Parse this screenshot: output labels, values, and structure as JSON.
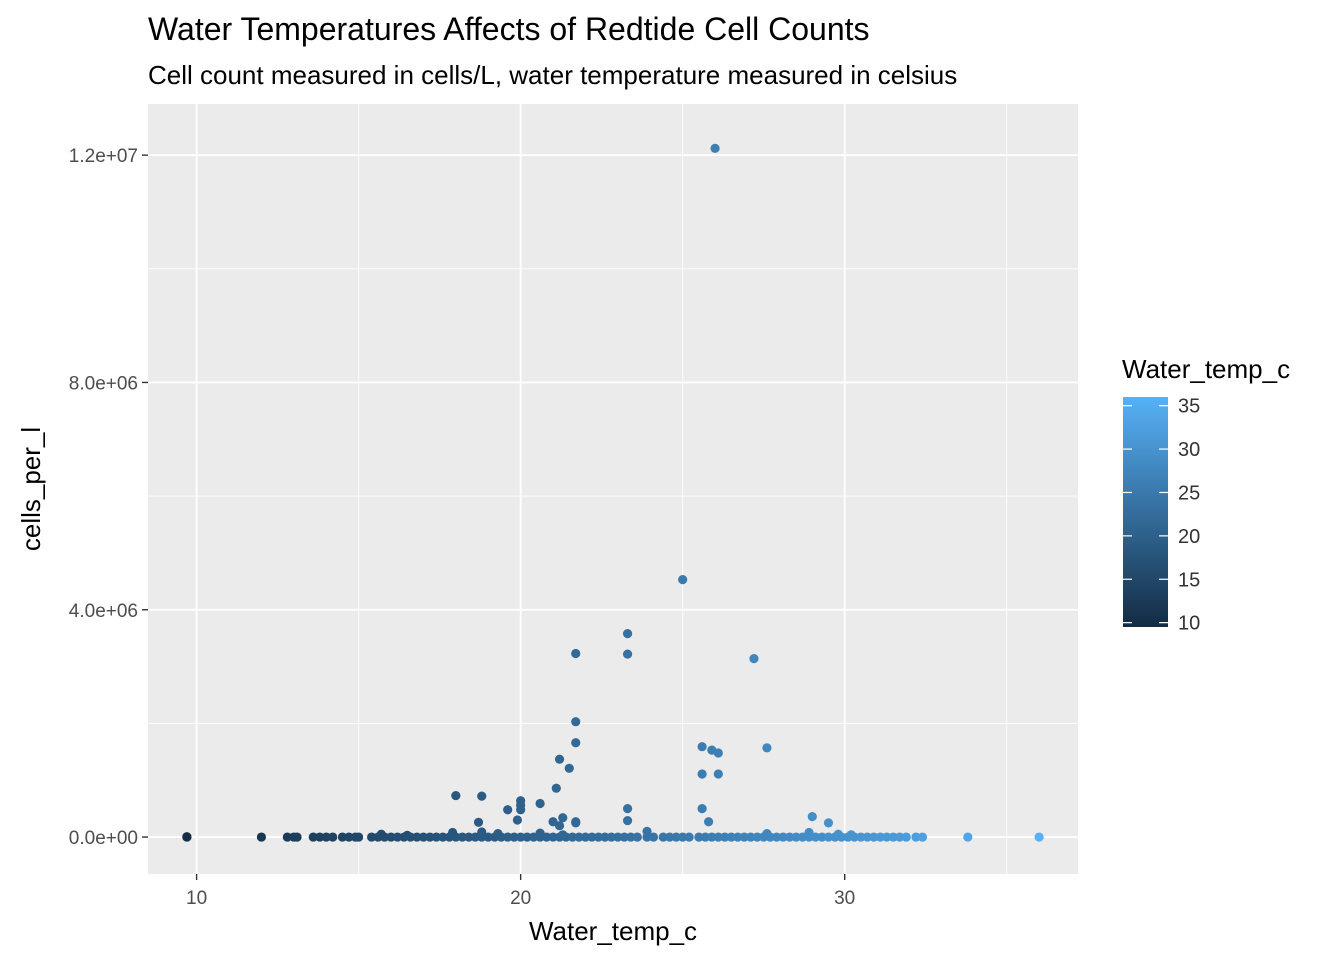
{
  "chart_data": {
    "type": "scatter",
    "title": "Water Temperatures Affects of Redtide Cell Counts",
    "subtitle": "Cell count measured in cells/L, water temperature measured in celsius",
    "xlabel": "Water_temp_c",
    "ylabel": "cells_per_l",
    "xlim": [
      8.5,
      37.2
    ],
    "ylim": [
      -650000,
      12900000
    ],
    "x_ticks": [
      10,
      20,
      30
    ],
    "x_tick_labels": [
      "10",
      "20",
      "30"
    ],
    "y_ticks": [
      0,
      4000000,
      8000000,
      12000000
    ],
    "y_tick_labels": [
      "0.0e+00",
      "4.0e+06",
      "8.0e+06",
      "1.2e+07"
    ],
    "grid": true,
    "legend": {
      "title": "Water_temp_c",
      "position": "right",
      "type": "colorbar",
      "min": 9.5,
      "max": 36,
      "ticks": [
        10,
        15,
        20,
        25,
        30,
        35
      ],
      "tick_labels": [
        "10",
        "15",
        "20",
        "25",
        "30",
        "35"
      ],
      "color_low": "#132B43",
      "color_high": "#56B1F7"
    },
    "colors": {
      "panel": "#EBEBEB",
      "grid": "#FFFFFF",
      "low": "#132B43",
      "high": "#56B1F7"
    },
    "points": [
      {
        "x": 9.7,
        "y": 0
      },
      {
        "x": 9.7,
        "y": 5000
      },
      {
        "x": 12.0,
        "y": 0
      },
      {
        "x": 12.8,
        "y": 0
      },
      {
        "x": 13.0,
        "y": 0
      },
      {
        "x": 13.1,
        "y": 0
      },
      {
        "x": 13.6,
        "y": 0
      },
      {
        "x": 13.8,
        "y": 0
      },
      {
        "x": 14.0,
        "y": 0
      },
      {
        "x": 14.2,
        "y": 0
      },
      {
        "x": 14.5,
        "y": 0
      },
      {
        "x": 14.7,
        "y": 0
      },
      {
        "x": 14.9,
        "y": 0
      },
      {
        "x": 15.0,
        "y": 0
      },
      {
        "x": 15.4,
        "y": 0
      },
      {
        "x": 15.6,
        "y": 0
      },
      {
        "x": 15.8,
        "y": 0
      },
      {
        "x": 16.0,
        "y": 0
      },
      {
        "x": 16.2,
        "y": 0
      },
      {
        "x": 16.4,
        "y": 0
      },
      {
        "x": 16.6,
        "y": 0
      },
      {
        "x": 16.8,
        "y": 0
      },
      {
        "x": 17.0,
        "y": 0
      },
      {
        "x": 17.2,
        "y": 0
      },
      {
        "x": 17.4,
        "y": 0
      },
      {
        "x": 17.6,
        "y": 0
      },
      {
        "x": 17.8,
        "y": 0
      },
      {
        "x": 18.0,
        "y": 0
      },
      {
        "x": 18.2,
        "y": 0
      },
      {
        "x": 18.4,
        "y": 0
      },
      {
        "x": 18.6,
        "y": 0
      },
      {
        "x": 18.8,
        "y": 0
      },
      {
        "x": 19.0,
        "y": 0
      },
      {
        "x": 19.2,
        "y": 0
      },
      {
        "x": 19.4,
        "y": 0
      },
      {
        "x": 19.6,
        "y": 0
      },
      {
        "x": 19.8,
        "y": 0
      },
      {
        "x": 20.0,
        "y": 0
      },
      {
        "x": 20.2,
        "y": 0
      },
      {
        "x": 20.4,
        "y": 0
      },
      {
        "x": 20.6,
        "y": 0
      },
      {
        "x": 20.8,
        "y": 0
      },
      {
        "x": 21.0,
        "y": 0
      },
      {
        "x": 21.2,
        "y": 0
      },
      {
        "x": 21.4,
        "y": 0
      },
      {
        "x": 21.6,
        "y": 0
      },
      {
        "x": 21.8,
        "y": 0
      },
      {
        "x": 22.0,
        "y": 0
      },
      {
        "x": 22.2,
        "y": 0
      },
      {
        "x": 22.4,
        "y": 0
      },
      {
        "x": 22.6,
        "y": 0
      },
      {
        "x": 22.8,
        "y": 0
      },
      {
        "x": 23.0,
        "y": 0
      },
      {
        "x": 23.2,
        "y": 0
      },
      {
        "x": 23.4,
        "y": 0
      },
      {
        "x": 23.6,
        "y": 0
      },
      {
        "x": 23.9,
        "y": 0
      },
      {
        "x": 24.1,
        "y": 0
      },
      {
        "x": 24.4,
        "y": 0
      },
      {
        "x": 24.6,
        "y": 0
      },
      {
        "x": 24.8,
        "y": 0
      },
      {
        "x": 25.0,
        "y": 0
      },
      {
        "x": 25.2,
        "y": 0
      },
      {
        "x": 25.5,
        "y": 0
      },
      {
        "x": 25.7,
        "y": 0
      },
      {
        "x": 25.9,
        "y": 0
      },
      {
        "x": 26.1,
        "y": 0
      },
      {
        "x": 26.3,
        "y": 0
      },
      {
        "x": 26.5,
        "y": 0
      },
      {
        "x": 26.7,
        "y": 0
      },
      {
        "x": 26.9,
        "y": 0
      },
      {
        "x": 27.1,
        "y": 0
      },
      {
        "x": 27.3,
        "y": 0
      },
      {
        "x": 27.5,
        "y": 0
      },
      {
        "x": 27.7,
        "y": 0
      },
      {
        "x": 27.9,
        "y": 0
      },
      {
        "x": 28.1,
        "y": 0
      },
      {
        "x": 28.3,
        "y": 0
      },
      {
        "x": 28.5,
        "y": 0
      },
      {
        "x": 28.7,
        "y": 0
      },
      {
        "x": 28.9,
        "y": 0
      },
      {
        "x": 29.1,
        "y": 0
      },
      {
        "x": 29.3,
        "y": 0
      },
      {
        "x": 29.5,
        "y": 0
      },
      {
        "x": 29.7,
        "y": 0
      },
      {
        "x": 29.9,
        "y": 0
      },
      {
        "x": 30.1,
        "y": 0
      },
      {
        "x": 30.3,
        "y": 0
      },
      {
        "x": 30.5,
        "y": 0
      },
      {
        "x": 30.7,
        "y": 0
      },
      {
        "x": 30.9,
        "y": 0
      },
      {
        "x": 31.1,
        "y": 0
      },
      {
        "x": 31.3,
        "y": 0
      },
      {
        "x": 31.5,
        "y": 0
      },
      {
        "x": 31.7,
        "y": 0
      },
      {
        "x": 31.9,
        "y": 0
      },
      {
        "x": 32.2,
        "y": 0
      },
      {
        "x": 32.4,
        "y": 0
      },
      {
        "x": 33.8,
        "y": 0
      },
      {
        "x": 36.0,
        "y": 0
      },
      {
        "x": 15.7,
        "y": 50000
      },
      {
        "x": 16.5,
        "y": 30000
      },
      {
        "x": 17.9,
        "y": 80000
      },
      {
        "x": 18.8,
        "y": 90000
      },
      {
        "x": 19.3,
        "y": 60000
      },
      {
        "x": 20.6,
        "y": 70000
      },
      {
        "x": 21.3,
        "y": 40000
      },
      {
        "x": 23.9,
        "y": 100000
      },
      {
        "x": 27.6,
        "y": 60000
      },
      {
        "x": 28.9,
        "y": 80000
      },
      {
        "x": 29.8,
        "y": 50000
      },
      {
        "x": 30.2,
        "y": 40000
      },
      {
        "x": 18.0,
        "y": 730000
      },
      {
        "x": 18.8,
        "y": 720000
      },
      {
        "x": 18.7,
        "y": 260000
      },
      {
        "x": 19.6,
        "y": 480000
      },
      {
        "x": 19.9,
        "y": 300000
      },
      {
        "x": 20.0,
        "y": 480000
      },
      {
        "x": 20.0,
        "y": 560000
      },
      {
        "x": 20.0,
        "y": 640000
      },
      {
        "x": 20.6,
        "y": 590000
      },
      {
        "x": 21.1,
        "y": 860000
      },
      {
        "x": 21.2,
        "y": 1370000
      },
      {
        "x": 21.0,
        "y": 270000
      },
      {
        "x": 21.3,
        "y": 340000
      },
      {
        "x": 21.2,
        "y": 200000
      },
      {
        "x": 21.5,
        "y": 1210000
      },
      {
        "x": 21.7,
        "y": 1660000
      },
      {
        "x": 21.7,
        "y": 2030000
      },
      {
        "x": 21.7,
        "y": 3230000
      },
      {
        "x": 21.7,
        "y": 270000
      },
      {
        "x": 21.7,
        "y": 250000
      },
      {
        "x": 23.3,
        "y": 3580000
      },
      {
        "x": 23.3,
        "y": 3220000
      },
      {
        "x": 23.3,
        "y": 500000
      },
      {
        "x": 23.3,
        "y": 290000
      },
      {
        "x": 25.0,
        "y": 4530000
      },
      {
        "x": 25.6,
        "y": 1590000
      },
      {
        "x": 25.6,
        "y": 1110000
      },
      {
        "x": 25.6,
        "y": 500000
      },
      {
        "x": 25.8,
        "y": 270000
      },
      {
        "x": 25.9,
        "y": 1530000
      },
      {
        "x": 26.0,
        "y": 12120000
      },
      {
        "x": 26.1,
        "y": 1110000
      },
      {
        "x": 26.1,
        "y": 1480000
      },
      {
        "x": 27.2,
        "y": 3140000
      },
      {
        "x": 27.6,
        "y": 1570000
      },
      {
        "x": 29.0,
        "y": 360000
      },
      {
        "x": 29.5,
        "y": 250000
      }
    ]
  }
}
